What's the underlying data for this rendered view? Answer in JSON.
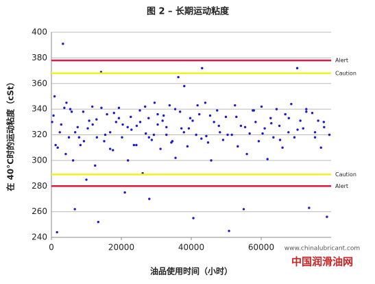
{
  "chart_data": {
    "type": "scatter",
    "title": "图 2 – 长期运动粘度",
    "x_label": "油品使用时间（小时）",
    "y_label": "在 40°C时的运动粘度（cSt）",
    "watermark": [
      "www.chinalubricant.com",
      "中国润滑油网"
    ],
    "xlim": [
      0,
      80000
    ],
    "xticks": [
      0,
      20000,
      40000,
      60000
    ],
    "ylim": [
      240,
      400
    ],
    "yticks": [
      240,
      260,
      280,
      300,
      320,
      340,
      360,
      380,
      400
    ],
    "grid": true,
    "reference_lines": [
      {
        "label": "Alert",
        "value": 378,
        "color": "#e0173c"
      },
      {
        "label": "Caution",
        "value": 368,
        "color": "#f2f21a"
      },
      {
        "label": "Caution",
        "value": 289,
        "color": "#f2f21a"
      },
      {
        "label": "Alert",
        "value": 280,
        "color": "#e0173c"
      }
    ],
    "series": [
      {
        "color": "#1a1ad6",
        "x": [
          200,
          900,
          1600,
          2400,
          3300,
          4100,
          5000,
          5800,
          6700,
          7500,
          8300,
          9100,
          10000,
          10800,
          11700,
          12500,
          13400,
          14200,
          15100,
          15900,
          16800,
          17600,
          18500,
          19300,
          20200,
          21000,
          21900,
          22700,
          23600,
          24400,
          25300,
          26100,
          27000,
          27800,
          28700,
          29500,
          30400,
          31200,
          32100,
          32900,
          33800,
          34600,
          35500,
          36300,
          37200,
          38000,
          38900,
          39700,
          40600,
          41400,
          42300,
          43100,
          44000,
          44800,
          45700,
          46500,
          47400,
          48200,
          49100,
          49900,
          50800,
          51600,
          52500,
          53300,
          54200,
          55000,
          55900,
          56700,
          57600,
          58400,
          59300,
          60100,
          61000,
          61800,
          62700,
          63500,
          64400,
          65200,
          66100,
          66900,
          67800,
          68600,
          69500,
          70300,
          71200,
          72000,
          72900,
          73700,
          74600,
          75400,
          76300,
          77100,
          78000,
          78800,
          79500,
          1200,
          3700,
          6200,
          13000,
          28000,
          600,
          2800,
          5400,
          7900,
          10400,
          12900,
          15400,
          17900,
          20400,
          22900,
          25400,
          27900,
          30400,
          32900,
          35400,
          37900,
          40400,
          42900,
          45400,
          47900,
          50400,
          52900,
          55400,
          57900,
          60400,
          62900,
          65400,
          67900,
          70400,
          72900,
          75400,
          77900,
          1800,
          4300,
          6800,
          9300,
          11800,
          14300,
          16800,
          19300,
          21800,
          24300,
          26800,
          29300,
          31800,
          34300,
          36800,
          39300,
          41800,
          44300
        ],
        "values": [
          330,
          350,
          244,
          322,
          391,
          305,
          318,
          338,
          262,
          326,
          312,
          338,
          285,
          331,
          342,
          296,
          252,
          369,
          315,
          336,
          322,
          308,
          330,
          341,
          318,
          275,
          300,
          334,
          312,
          327,
          339,
          290,
          321,
          333,
          316,
          345,
          328,
          309,
          335,
          320,
          343,
          315,
          302,
          365,
          325,
          358,
          311,
          333,
          255,
          320,
          336,
          372,
          345,
          314,
          300,
          330,
          339,
          322,
          316,
          334,
          245,
          320,
          343,
          311,
          327,
          262,
          305,
          321,
          339,
          330,
          315,
          342,
          325,
          301,
          333,
          318,
          340,
          327,
          310,
          336,
          322,
          344,
          318,
          372,
          331,
          325,
          340,
          263,
          337,
          322,
          331,
          310,
          326,
          256,
          320,
          312,
          341,
          300,
          318,
          270,
          335,
          328,
          340,
          318,
          325,
          332,
          320,
          337,
          328,
          324,
          330,
          318,
          336,
          326,
          340,
          322,
          331,
          317,
          335,
          327,
          320,
          334,
          326,
          339,
          321,
          329,
          316,
          333,
          324,
          338,
          318,
          330,
          310,
          345,
          322,
          315,
          328,
          341,
          309,
          333,
          326,
          312,
          342,
          320,
          331,
          314,
          338,
          325,
          343,
          319
        ]
      }
    ]
  }
}
